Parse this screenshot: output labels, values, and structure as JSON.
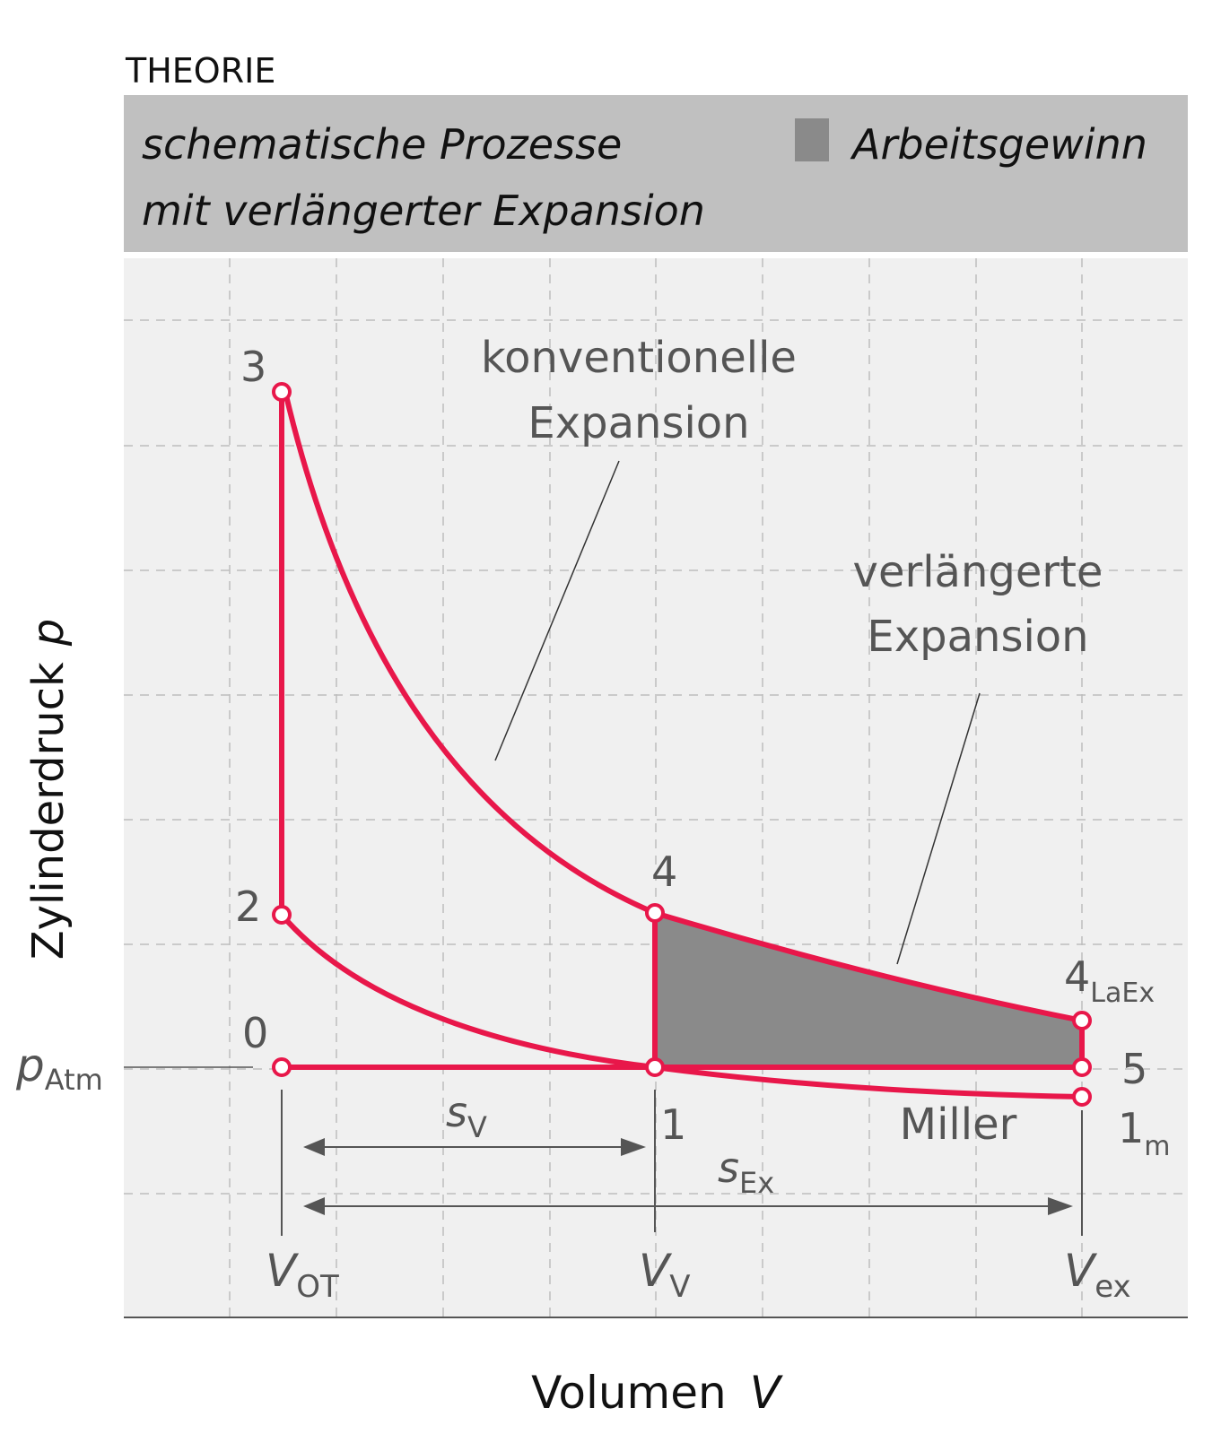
{
  "header": {
    "section": "THEORIE",
    "title_line1": "schematische Prozesse",
    "title_line2": "mit verlängerter Expansion",
    "legend_label": "Arbeitsgewinn"
  },
  "axes": {
    "y_label_main": "Zylinderdruck",
    "y_label_symbol": "p",
    "x_label_main": "Volumen",
    "x_label_symbol": "V",
    "p_atm_main": "p",
    "p_atm_sub": "Atm"
  },
  "annotations": {
    "conventional_line1": "konventionelle",
    "conventional_line2": "Expansion",
    "extended_line1": "verlängerte",
    "extended_line2": "Expansion",
    "miller": "Miller"
  },
  "points": {
    "p0": "0",
    "p1": "1",
    "p2": "2",
    "p3": "3",
    "p4": "4",
    "p4laex_main": "4",
    "p4laex_sub": "LaEx",
    "p5": "5",
    "p1m_main": "1",
    "p1m_sub": "m"
  },
  "volumes": {
    "vot_main": "V",
    "vot_sub": "OT",
    "vv_main": "V",
    "vv_sub": "V",
    "vex_main": "V",
    "vex_sub": "ex"
  },
  "strokes": {
    "sv_main": "s",
    "sv_sub": "V",
    "sex_main": "s",
    "sex_sub": "Ex"
  },
  "colors": {
    "process_line": "#e8174a",
    "work_gain_fill": "#8a8a8a",
    "header_bg": "#c0c0c0",
    "plot_bg": "#f0f0f0"
  }
}
